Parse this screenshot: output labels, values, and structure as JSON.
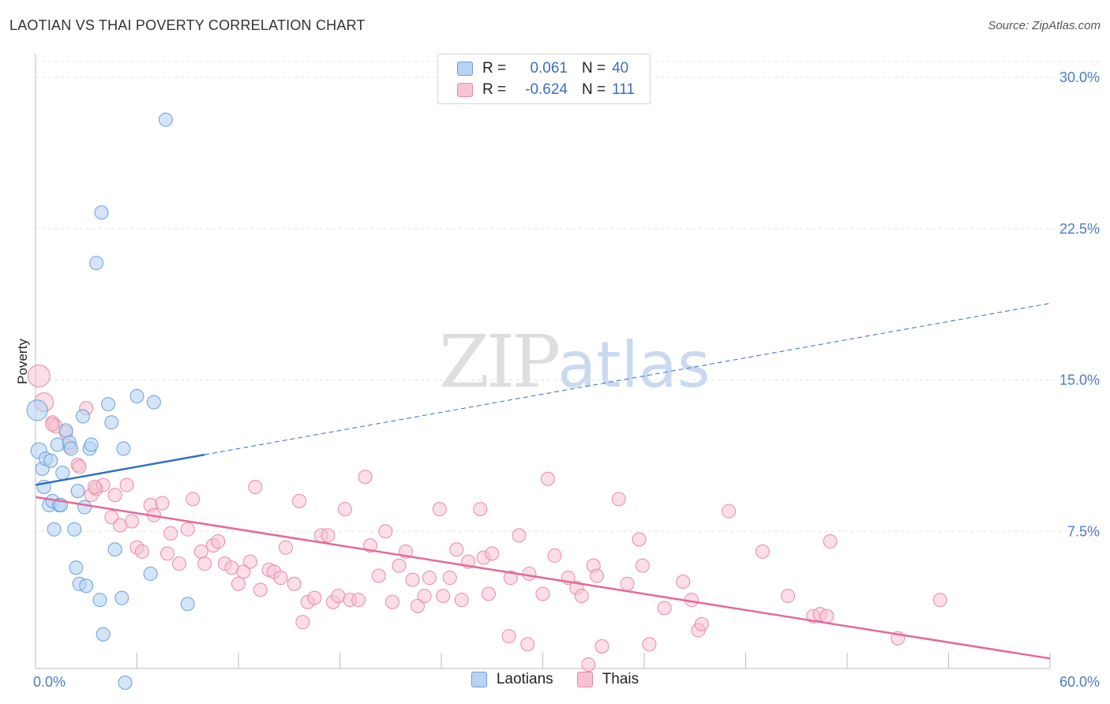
{
  "header": {
    "title": "LAOTIAN VS THAI POVERTY CORRELATION CHART",
    "source": "Source: ZipAtlas.com"
  },
  "legend": {
    "rows": [
      {
        "r_label": "R =",
        "r_value": "0.061",
        "n_label": "N =",
        "n_value": "40"
      },
      {
        "r_label": "R =",
        "r_value": "-0.624",
        "n_label": "N =",
        "n_value": "111"
      }
    ]
  },
  "bottom_legend": {
    "laotians": "Laotians",
    "thais": "Thais"
  },
  "watermark": {
    "zip": "ZIP",
    "atlas": "atlas"
  },
  "colors": {
    "laotian_fill": "#b8d3f2",
    "laotian_stroke": "#6a9fdc",
    "laotian_line": "#2f6fcc",
    "thai_fill": "#f7c3d2",
    "thai_stroke": "#e78aa8",
    "thai_line": "#e5689a",
    "tick_text": "#4a7cc7",
    "grid": "#e3e3e3"
  },
  "chart_data": {
    "type": "scatter",
    "title": "LAOTIAN VS THAI POVERTY CORRELATION CHART",
    "xlabel": "",
    "ylabel": "Poverty",
    "xlim": [
      0,
      60
    ],
    "ylim": [
      0,
      30
    ],
    "x_tick_labels": [
      "0.0%",
      "60.0%"
    ],
    "y_ticks": [
      7.5,
      15.0,
      22.5,
      30.0
    ],
    "y_tick_labels": [
      "7.5%",
      "15.0%",
      "22.5%",
      "30.0%"
    ],
    "grid": "horizontal dashed",
    "legend_position": "top-center",
    "series": [
      {
        "name": "Laotians",
        "r": 0.061,
        "n": 40,
        "trend": {
          "x0": 0,
          "y0": 9.8,
          "x_solid_end": 10,
          "y_solid_end": 11.3,
          "x1": 60,
          "y1": 18.8
        },
        "points": [
          [
            0.1,
            13.5
          ],
          [
            0.2,
            11.5
          ],
          [
            0.4,
            10.6
          ],
          [
            0.5,
            9.7
          ],
          [
            0.6,
            11.1
          ],
          [
            0.8,
            8.8
          ],
          [
            0.9,
            11.0
          ],
          [
            1.0,
            9.0
          ],
          [
            1.1,
            7.6
          ],
          [
            1.3,
            11.8
          ],
          [
            1.4,
            8.8
          ],
          [
            1.6,
            10.4
          ],
          [
            1.8,
            12.5
          ],
          [
            2.0,
            11.9
          ],
          [
            2.1,
            11.6
          ],
          [
            2.3,
            7.6
          ],
          [
            2.4,
            5.7
          ],
          [
            2.5,
            9.5
          ],
          [
            2.6,
            4.9
          ],
          [
            2.8,
            13.2
          ],
          [
            2.9,
            8.7
          ],
          [
            3.0,
            4.8
          ],
          [
            3.2,
            11.6
          ],
          [
            3.3,
            11.8
          ],
          [
            3.8,
            4.1
          ],
          [
            3.9,
            23.3
          ],
          [
            3.6,
            20.8
          ],
          [
            4.0,
            2.4
          ],
          [
            4.3,
            13.8
          ],
          [
            4.5,
            12.9
          ],
          [
            4.7,
            6.6
          ],
          [
            5.1,
            4.2
          ],
          [
            5.2,
            11.6
          ],
          [
            5.3,
            0.0
          ],
          [
            6.0,
            14.2
          ],
          [
            6.8,
            5.4
          ],
          [
            7.0,
            13.9
          ],
          [
            7.7,
            27.9
          ],
          [
            9.0,
            3.9
          ],
          [
            1.5,
            8.8
          ]
        ]
      },
      {
        "name": "Thais",
        "r": -0.624,
        "n": 111,
        "trend": {
          "x0": 0,
          "y0": 9.2,
          "x1": 60,
          "y1": 1.2
        },
        "points": [
          [
            0.2,
            15.2
          ],
          [
            0.5,
            13.9
          ],
          [
            1.0,
            12.9
          ],
          [
            1.2,
            12.7
          ],
          [
            1.8,
            12.4
          ],
          [
            2.0,
            11.7
          ],
          [
            2.5,
            10.8
          ],
          [
            2.6,
            10.7
          ],
          [
            3.0,
            13.6
          ],
          [
            3.3,
            9.3
          ],
          [
            3.6,
            9.6
          ],
          [
            4.0,
            9.8
          ],
          [
            4.5,
            8.2
          ],
          [
            4.7,
            9.3
          ],
          [
            5.0,
            7.8
          ],
          [
            5.4,
            9.8
          ],
          [
            5.7,
            8.0
          ],
          [
            6.0,
            6.7
          ],
          [
            6.3,
            6.5
          ],
          [
            6.8,
            8.8
          ],
          [
            7.0,
            8.3
          ],
          [
            7.5,
            8.9
          ],
          [
            7.8,
            6.4
          ],
          [
            8.0,
            7.4
          ],
          [
            8.5,
            5.9
          ],
          [
            9.0,
            7.6
          ],
          [
            9.3,
            9.1
          ],
          [
            9.8,
            6.5
          ],
          [
            10.0,
            5.9
          ],
          [
            10.5,
            6.8
          ],
          [
            10.8,
            7.0
          ],
          [
            11.2,
            5.9
          ],
          [
            11.6,
            5.7
          ],
          [
            12.0,
            4.9
          ],
          [
            12.3,
            5.5
          ],
          [
            12.7,
            6.0
          ],
          [
            13.0,
            9.7
          ],
          [
            13.3,
            4.6
          ],
          [
            13.8,
            5.6
          ],
          [
            14.1,
            5.5
          ],
          [
            14.5,
            5.2
          ],
          [
            14.8,
            6.7
          ],
          [
            15.3,
            4.9
          ],
          [
            15.6,
            9.0
          ],
          [
            15.8,
            3.0
          ],
          [
            16.1,
            4.0
          ],
          [
            16.5,
            4.2
          ],
          [
            16.9,
            7.3
          ],
          [
            17.3,
            7.3
          ],
          [
            17.6,
            4.0
          ],
          [
            17.9,
            4.3
          ],
          [
            18.3,
            8.6
          ],
          [
            18.6,
            4.1
          ],
          [
            19.1,
            4.1
          ],
          [
            19.5,
            10.2
          ],
          [
            19.8,
            6.8
          ],
          [
            20.3,
            5.3
          ],
          [
            20.7,
            7.5
          ],
          [
            21.1,
            4.0
          ],
          [
            21.5,
            5.8
          ],
          [
            21.9,
            6.5
          ],
          [
            22.3,
            5.1
          ],
          [
            22.6,
            3.8
          ],
          [
            23.0,
            4.3
          ],
          [
            23.3,
            5.2
          ],
          [
            23.9,
            8.6
          ],
          [
            24.1,
            4.3
          ],
          [
            24.5,
            5.2
          ],
          [
            24.9,
            6.6
          ],
          [
            25.2,
            4.1
          ],
          [
            25.6,
            6.0
          ],
          [
            26.3,
            8.6
          ],
          [
            26.5,
            6.2
          ],
          [
            26.8,
            4.4
          ],
          [
            27.0,
            6.4
          ],
          [
            28.0,
            2.3
          ],
          [
            28.1,
            5.2
          ],
          [
            28.6,
            7.3
          ],
          [
            29.1,
            1.9
          ],
          [
            29.2,
            5.4
          ],
          [
            30.0,
            4.4
          ],
          [
            30.3,
            10.1
          ],
          [
            30.7,
            6.3
          ],
          [
            31.5,
            5.2
          ],
          [
            32.0,
            4.7
          ],
          [
            32.3,
            4.3
          ],
          [
            32.7,
            0.9
          ],
          [
            33.0,
            5.8
          ],
          [
            33.2,
            5.3
          ],
          [
            33.5,
            1.8
          ],
          [
            34.5,
            9.1
          ],
          [
            35.0,
            4.9
          ],
          [
            35.7,
            7.1
          ],
          [
            35.9,
            5.8
          ],
          [
            36.3,
            1.9
          ],
          [
            37.2,
            3.7
          ],
          [
            38.3,
            5.0
          ],
          [
            38.8,
            4.1
          ],
          [
            39.2,
            2.6
          ],
          [
            39.4,
            2.9
          ],
          [
            41.0,
            8.5
          ],
          [
            43.0,
            6.5
          ],
          [
            44.5,
            4.3
          ],
          [
            46.0,
            3.3
          ],
          [
            46.4,
            3.4
          ],
          [
            47.0,
            7.0
          ],
          [
            46.8,
            3.3
          ],
          [
            51.0,
            2.2
          ],
          [
            53.5,
            4.1
          ],
          [
            1.0,
            12.8
          ],
          [
            3.5,
            9.7
          ]
        ]
      }
    ]
  }
}
